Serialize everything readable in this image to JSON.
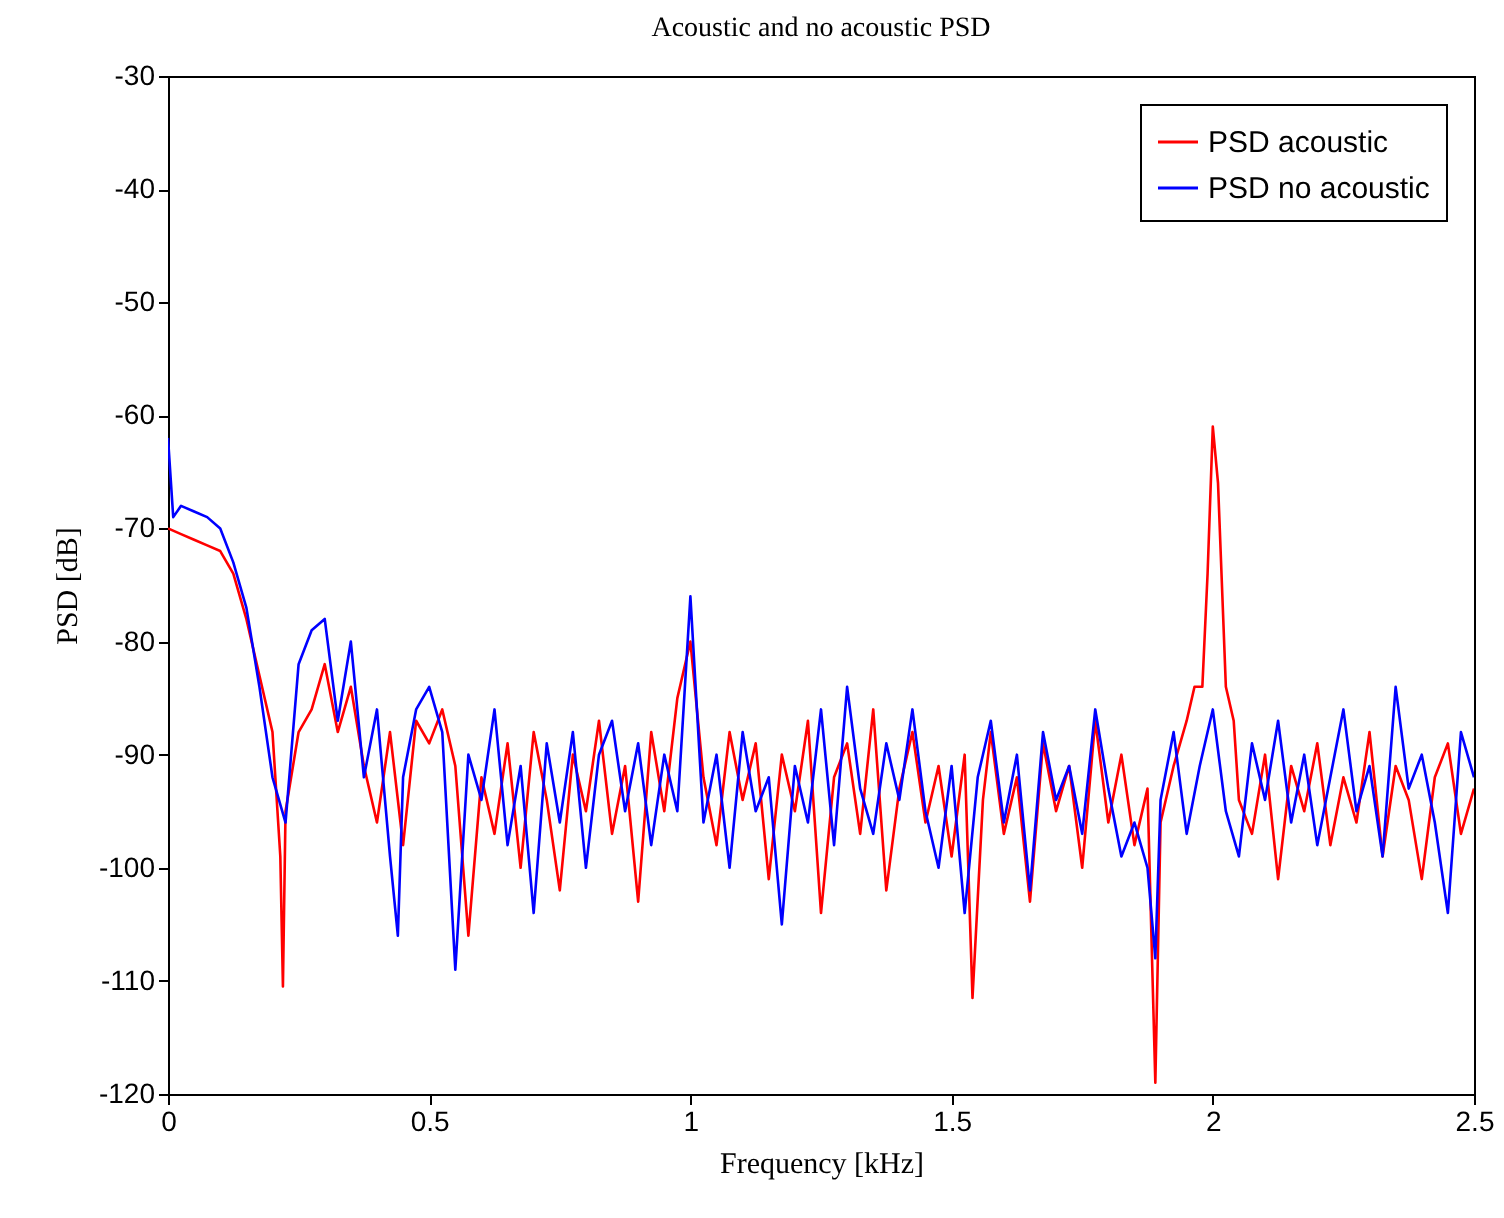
{
  "chart_data": {
    "type": "line",
    "title": "Acoustic and no acoustic PSD",
    "xlabel": "Frequency [kHz]",
    "ylabel": "PSD [dB]",
    "xlim": [
      0,
      2.5
    ],
    "xticks": [
      0,
      0.5,
      1,
      1.5,
      2,
      2.5
    ],
    "ylim": [
      -120,
      -30
    ],
    "yticks": [
      -120,
      -110,
      -100,
      -90,
      -80,
      -70,
      -60,
      -50,
      -40,
      -30
    ],
    "grid": false,
    "legend": "top right",
    "line_style": "solid",
    "series": [
      {
        "name": "PSD acoustic",
        "color": "#ff0000",
        "x": [
          0,
          0.025,
          0.05,
          0.075,
          0.1,
          0.125,
          0.15,
          0.175,
          0.2,
          0.215,
          0.22,
          0.225,
          0.25,
          0.275,
          0.3,
          0.325,
          0.35,
          0.375,
          0.4,
          0.425,
          0.45,
          0.475,
          0.5,
          0.525,
          0.55,
          0.575,
          0.6,
          0.625,
          0.65,
          0.675,
          0.7,
          0.725,
          0.75,
          0.775,
          0.8,
          0.825,
          0.85,
          0.875,
          0.9,
          0.925,
          0.95,
          0.975,
          1.0,
          1.025,
          1.05,
          1.075,
          1.1,
          1.125,
          1.15,
          1.175,
          1.2,
          1.225,
          1.25,
          1.275,
          1.3,
          1.325,
          1.35,
          1.375,
          1.4,
          1.425,
          1.45,
          1.475,
          1.5,
          1.525,
          1.54,
          1.56,
          1.575,
          1.6,
          1.625,
          1.65,
          1.675,
          1.7,
          1.725,
          1.75,
          1.775,
          1.8,
          1.825,
          1.85,
          1.875,
          1.89,
          1.9,
          1.925,
          1.95,
          1.965,
          1.98,
          1.99,
          2.0,
          2.01,
          2.025,
          2.04,
          2.05,
          2.075,
          2.1,
          2.125,
          2.15,
          2.175,
          2.2,
          2.225,
          2.25,
          2.275,
          2.3,
          2.325,
          2.35,
          2.375,
          2.4,
          2.425,
          2.45,
          2.475,
          2.5
        ],
        "values": [
          -70,
          -70.5,
          -71,
          -71.5,
          -72,
          -74,
          -78,
          -83,
          -88,
          -99,
          -110.5,
          -95,
          -88,
          -86,
          -82,
          -88,
          -84,
          -91,
          -96,
          -88,
          -98,
          -87,
          -89,
          -86,
          -91,
          -106,
          -92,
          -97,
          -89,
          -100,
          -88,
          -94,
          -102,
          -90,
          -95,
          -87,
          -97,
          -91,
          -103,
          -88,
          -95,
          -85,
          -80,
          -92,
          -98,
          -88,
          -94,
          -89,
          -101,
          -90,
          -95,
          -87,
          -104,
          -92,
          -89,
          -97,
          -86,
          -102,
          -93,
          -88,
          -96,
          -91,
          -99,
          -90,
          -111.5,
          -94,
          -88,
          -97,
          -92,
          -103,
          -89,
          -95,
          -91,
          -100,
          -87,
          -96,
          -90,
          -98,
          -93,
          -119,
          -96,
          -91,
          -87,
          -84,
          -84,
          -74,
          -61,
          -66,
          -84,
          -87,
          -94,
          -97,
          -90,
          -101,
          -91,
          -95,
          -89,
          -98,
          -92,
          -96,
          -88,
          -99,
          -91,
          -94,
          -101,
          -92,
          -89,
          -97,
          -93
        ]
      },
      {
        "name": "PSD no acoustic",
        "color": "#0000ff",
        "x": [
          0,
          0.01,
          0.025,
          0.05,
          0.075,
          0.1,
          0.125,
          0.15,
          0.175,
          0.2,
          0.225,
          0.25,
          0.275,
          0.3,
          0.325,
          0.35,
          0.375,
          0.4,
          0.425,
          0.44,
          0.45,
          0.475,
          0.5,
          0.525,
          0.55,
          0.575,
          0.6,
          0.625,
          0.65,
          0.675,
          0.7,
          0.725,
          0.75,
          0.775,
          0.8,
          0.825,
          0.85,
          0.875,
          0.9,
          0.925,
          0.95,
          0.975,
          1.0,
          1.025,
          1.05,
          1.075,
          1.1,
          1.125,
          1.15,
          1.175,
          1.2,
          1.225,
          1.25,
          1.275,
          1.3,
          1.325,
          1.35,
          1.375,
          1.4,
          1.425,
          1.45,
          1.475,
          1.5,
          1.525,
          1.55,
          1.575,
          1.6,
          1.625,
          1.65,
          1.675,
          1.7,
          1.725,
          1.75,
          1.775,
          1.8,
          1.825,
          1.85,
          1.875,
          1.89,
          1.9,
          1.925,
          1.95,
          1.975,
          2.0,
          2.025,
          2.05,
          2.075,
          2.1,
          2.125,
          2.15,
          2.175,
          2.2,
          2.225,
          2.25,
          2.275,
          2.3,
          2.325,
          2.35,
          2.375,
          2.4,
          2.425,
          2.45,
          2.475,
          2.5
        ],
        "values": [
          -62,
          -69,
          -68,
          -68.5,
          -69,
          -70,
          -73,
          -77,
          -84,
          -92,
          -96,
          -82,
          -79,
          -78,
          -87,
          -80,
          -92,
          -86,
          -99,
          -106,
          -92,
          -86,
          -84,
          -88,
          -109,
          -90,
          -94,
          -86,
          -98,
          -91,
          -104,
          -89,
          -96,
          -88,
          -100,
          -90,
          -87,
          -95,
          -89,
          -98,
          -90,
          -95,
          -76,
          -96,
          -90,
          -100,
          -88,
          -95,
          -92,
          -105,
          -91,
          -96,
          -86,
          -98,
          -84,
          -93,
          -97,
          -89,
          -94,
          -86,
          -95,
          -100,
          -91,
          -104,
          -92,
          -87,
          -96,
          -90,
          -102,
          -88,
          -94,
          -91,
          -97,
          -86,
          -93,
          -99,
          -96,
          -100,
          -108,
          -94,
          -88,
          -97,
          -91,
          -86,
          -95,
          -99,
          -89,
          -94,
          -87,
          -96,
          -90,
          -98,
          -92,
          -86,
          -95,
          -91,
          -99,
          -84,
          -93,
          -90,
          -96,
          -104,
          -88,
          -92
        ]
      }
    ]
  }
}
